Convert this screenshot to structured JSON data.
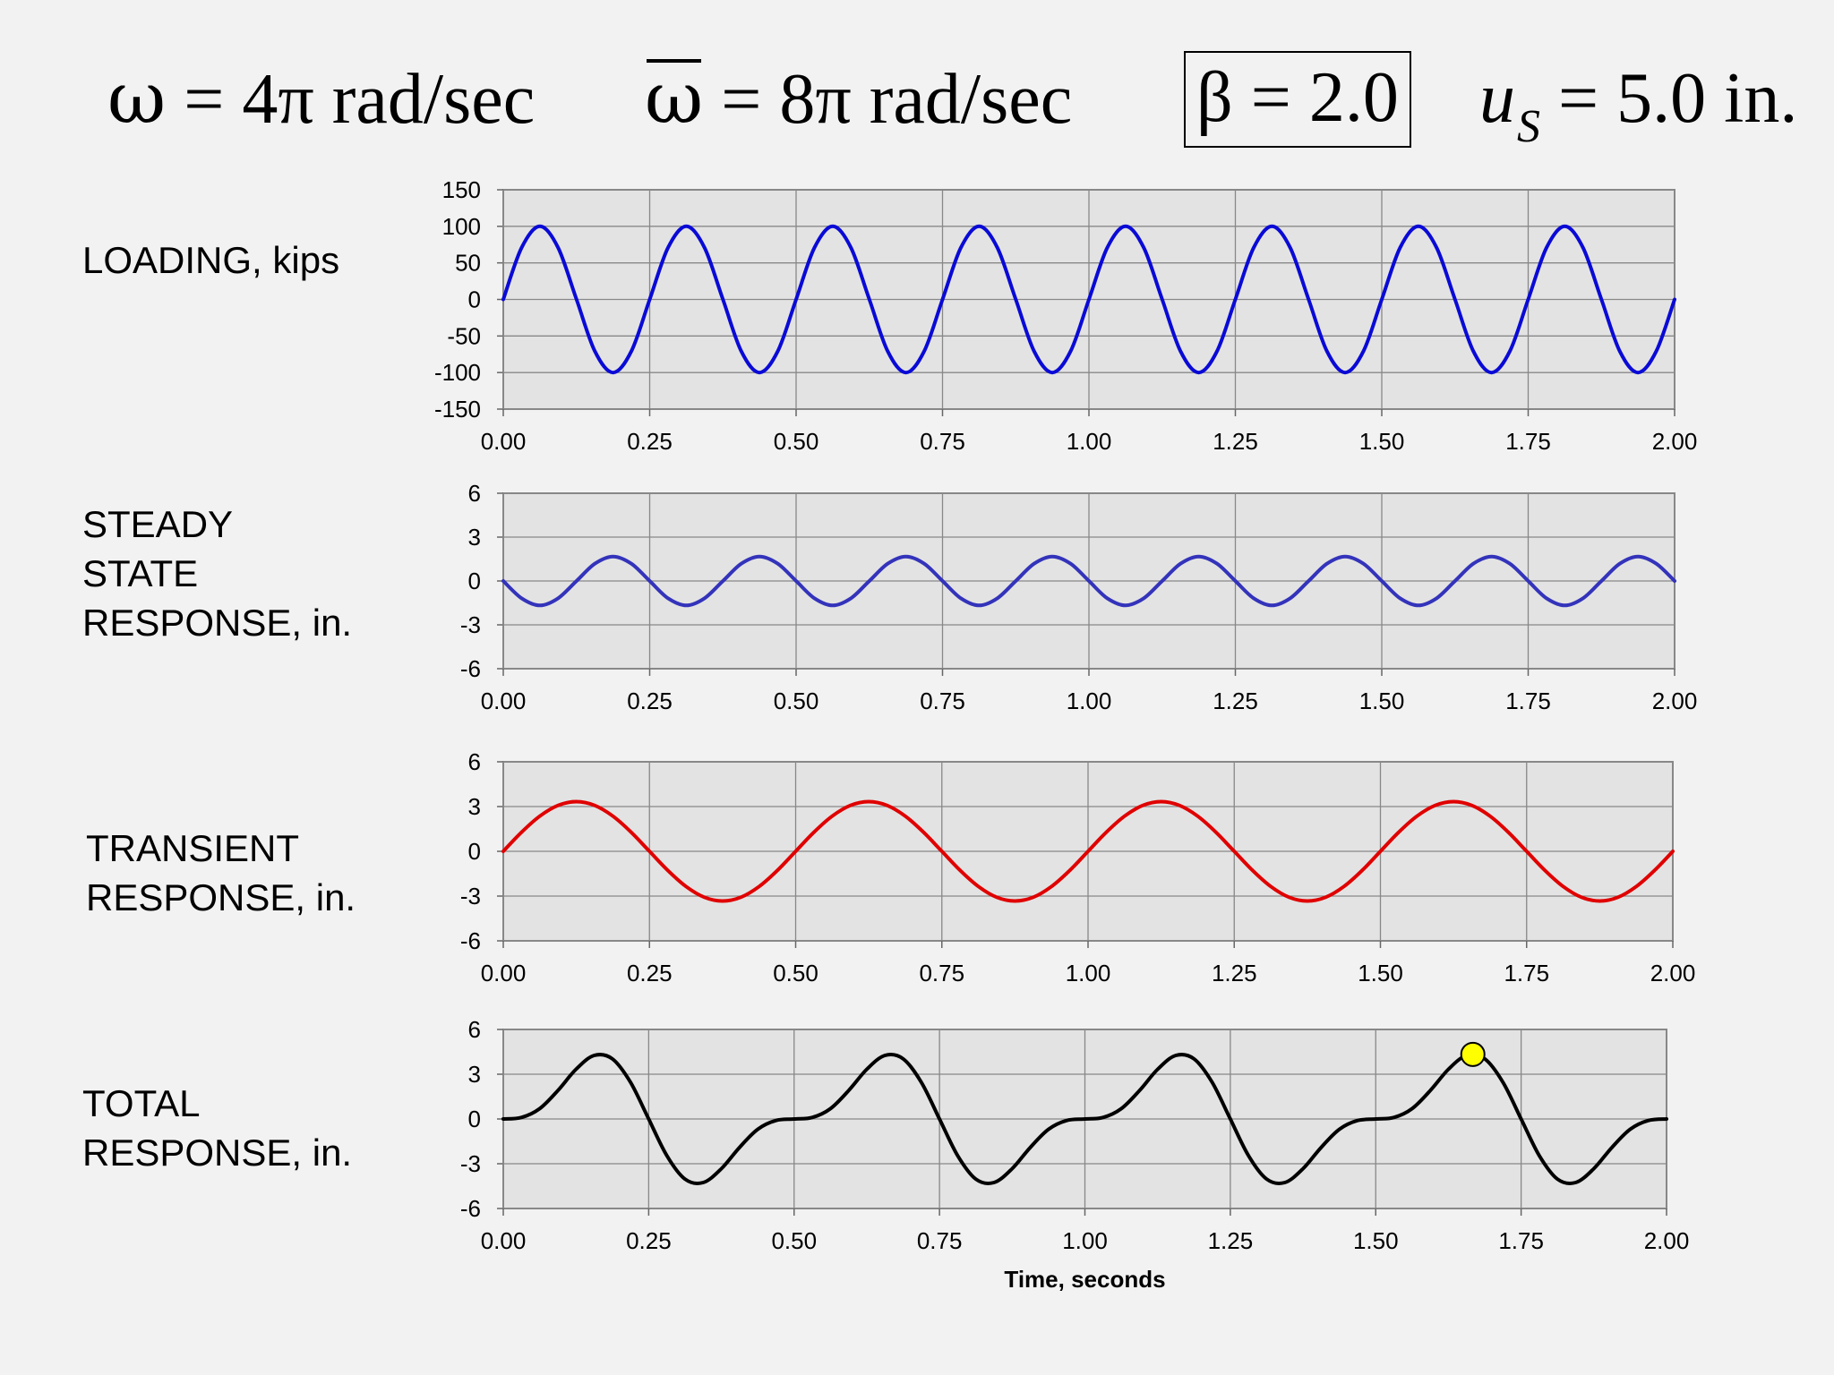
{
  "header": {
    "omega": {
      "symbol": "ω",
      "rest": "= 4π rad/sec"
    },
    "omega_bar": {
      "symbol": "ω",
      "rest": "= 8π rad/sec"
    },
    "beta": {
      "text": "β = 2.0"
    },
    "us": {
      "var": "u",
      "sub": "S",
      "rest": "= 5.0 in."
    }
  },
  "row_labels": [
    {
      "lines": [
        "LOADING, kips"
      ]
    },
    {
      "lines": [
        "STEADY",
        "STATE",
        "RESPONSE, in."
      ]
    },
    {
      "lines": [
        "TRANSIENT",
        "RESPONSE, in."
      ]
    },
    {
      "lines": [
        "TOTAL",
        "RESPONSE, in."
      ]
    }
  ],
  "chart_data": [
    {
      "type": "line",
      "title": "",
      "xlabel": "",
      "ylabel": "",
      "xlim": [
        0,
        2
      ],
      "ylim": [
        -150,
        150
      ],
      "xticks": [
        "0.00",
        "0.25",
        "0.50",
        "0.75",
        "1.00",
        "1.25",
        "1.50",
        "1.75",
        "2.00"
      ],
      "yticks": [
        "150",
        "100",
        "50",
        "0",
        "-50",
        "-100",
        "-150"
      ],
      "grid": true,
      "series": [
        {
          "color": "#0a0ad6",
          "x": [
            0,
            0.03125,
            0.0625,
            0.09375,
            0.125,
            0.15625,
            0.1875,
            0.21875,
            0.25,
            0.28125,
            0.3125,
            0.34375,
            0.375,
            0.40625,
            0.4375,
            0.46875,
            0.5,
            0.53125,
            0.5625,
            0.59375,
            0.625,
            0.65625,
            0.6875,
            0.71875,
            0.75,
            0.78125,
            0.8125,
            0.84375,
            0.875,
            0.90625,
            0.9375,
            0.96875,
            1,
            1.03125,
            1.0625,
            1.09375,
            1.125,
            1.15625,
            1.1875,
            1.21875,
            1.25,
            1.28125,
            1.3125,
            1.34375,
            1.375,
            1.40625,
            1.4375,
            1.46875,
            1.5,
            1.53125,
            1.5625,
            1.59375,
            1.625,
            1.65625,
            1.6875,
            1.71875,
            1.75,
            1.78125,
            1.8125,
            1.84375,
            1.875,
            1.90625,
            1.9375,
            1.96875,
            2
          ],
          "y": [
            0,
            70.7,
            100,
            70.7,
            0,
            -70.7,
            -100,
            -70.7,
            0,
            70.7,
            100,
            70.7,
            0,
            -70.7,
            -100,
            -70.7,
            0,
            70.7,
            100,
            70.7,
            0,
            -70.7,
            -100,
            -70.7,
            0,
            70.7,
            100,
            70.7,
            0,
            -70.7,
            -100,
            -70.7,
            0,
            70.7,
            100,
            70.7,
            0,
            -70.7,
            -100,
            -70.7,
            0,
            70.7,
            100,
            70.7,
            0,
            -70.7,
            -100,
            -70.7,
            0,
            70.7,
            100,
            70.7,
            0,
            -70.7,
            -100,
            -70.7,
            0,
            70.7,
            100,
            70.7,
            0,
            -70.7,
            -100,
            -70.7,
            0
          ]
        }
      ]
    },
    {
      "type": "line",
      "title": "",
      "xlabel": "",
      "ylabel": "",
      "xlim": [
        0,
        2
      ],
      "ylim": [
        -6,
        6
      ],
      "xticks": [
        "0.00",
        "0.25",
        "0.50",
        "0.75",
        "1.00",
        "1.25",
        "1.50",
        "1.75",
        "2.00"
      ],
      "yticks": [
        "6",
        "3",
        "0",
        "-3",
        "-6"
      ],
      "grid": true,
      "series": [
        {
          "color": "#3333bb",
          "x": [
            0,
            0.03125,
            0.0625,
            0.09375,
            0.125,
            0.15625,
            0.1875,
            0.21875,
            0.25,
            0.28125,
            0.3125,
            0.34375,
            0.375,
            0.40625,
            0.4375,
            0.46875,
            0.5,
            0.53125,
            0.5625,
            0.59375,
            0.625,
            0.65625,
            0.6875,
            0.71875,
            0.75,
            0.78125,
            0.8125,
            0.84375,
            0.875,
            0.90625,
            0.9375,
            0.96875,
            1,
            1.03125,
            1.0625,
            1.09375,
            1.125,
            1.15625,
            1.1875,
            1.21875,
            1.25,
            1.28125,
            1.3125,
            1.34375,
            1.375,
            1.40625,
            1.4375,
            1.46875,
            1.5,
            1.53125,
            1.5625,
            1.59375,
            1.625,
            1.65625,
            1.6875,
            1.71875,
            1.75,
            1.78125,
            1.8125,
            1.84375,
            1.875,
            1.90625,
            1.9375,
            1.96875,
            2
          ],
          "y": [
            0,
            -1.18,
            -1.67,
            -1.18,
            0,
            1.18,
            1.67,
            1.18,
            0,
            -1.18,
            -1.67,
            -1.18,
            0,
            1.18,
            1.67,
            1.18,
            0,
            -1.18,
            -1.67,
            -1.18,
            0,
            1.18,
            1.67,
            1.18,
            0,
            -1.18,
            -1.67,
            -1.18,
            0,
            1.18,
            1.67,
            1.18,
            0,
            -1.18,
            -1.67,
            -1.18,
            0,
            1.18,
            1.67,
            1.18,
            0,
            -1.18,
            -1.67,
            -1.18,
            0,
            1.18,
            1.67,
            1.18,
            0,
            -1.18,
            -1.67,
            -1.18,
            0,
            1.18,
            1.67,
            1.18,
            0,
            -1.18,
            -1.67,
            -1.18,
            0,
            1.18,
            1.67,
            1.18,
            0
          ]
        }
      ]
    },
    {
      "type": "line",
      "title": "",
      "xlabel": "",
      "ylabel": "",
      "xlim": [
        0,
        2
      ],
      "ylim": [
        -6,
        6
      ],
      "xticks": [
        "0.00",
        "0.25",
        "0.50",
        "0.75",
        "1.00",
        "1.25",
        "1.50",
        "1.75",
        "2.00"
      ],
      "yticks": [
        "6",
        "3",
        "0",
        "-3",
        "-6"
      ],
      "grid": true,
      "series": [
        {
          "color": "#e00000",
          "x": [
            0,
            0.03125,
            0.0625,
            0.09375,
            0.125,
            0.15625,
            0.1875,
            0.21875,
            0.25,
            0.28125,
            0.3125,
            0.34375,
            0.375,
            0.40625,
            0.4375,
            0.46875,
            0.5,
            0.53125,
            0.5625,
            0.59375,
            0.625,
            0.65625,
            0.6875,
            0.71875,
            0.75,
            0.78125,
            0.8125,
            0.84375,
            0.875,
            0.90625,
            0.9375,
            0.96875,
            1,
            1.03125,
            1.0625,
            1.09375,
            1.125,
            1.15625,
            1.1875,
            1.21875,
            1.25,
            1.28125,
            1.3125,
            1.34375,
            1.375,
            1.40625,
            1.4375,
            1.46875,
            1.5,
            1.53125,
            1.5625,
            1.59375,
            1.625,
            1.65625,
            1.6875,
            1.71875,
            1.75,
            1.78125,
            1.8125,
            1.84375,
            1.875,
            1.90625,
            1.9375,
            1.96875,
            2
          ],
          "y": [
            0,
            1.28,
            2.36,
            3.08,
            3.33,
            3.08,
            2.36,
            1.28,
            0,
            -1.28,
            -2.36,
            -3.08,
            -3.33,
            -3.08,
            -2.36,
            -1.28,
            0,
            1.28,
            2.36,
            3.08,
            3.33,
            3.08,
            2.36,
            1.28,
            0,
            -1.28,
            -2.36,
            -3.08,
            -3.33,
            -3.08,
            -2.36,
            -1.28,
            0,
            1.28,
            2.36,
            3.08,
            3.33,
            3.08,
            2.36,
            1.28,
            0,
            -1.28,
            -2.36,
            -3.08,
            -3.33,
            -3.08,
            -2.36,
            -1.28,
            0,
            1.28,
            2.36,
            3.08,
            3.33,
            3.08,
            2.36,
            1.28,
            0,
            -1.28,
            -2.36,
            -3.08,
            -3.33,
            -3.08,
            -2.36,
            -1.28,
            0
          ]
        }
      ]
    },
    {
      "type": "line",
      "title": "",
      "xlabel": "Time, seconds",
      "ylabel": "",
      "xlim": [
        0,
        2
      ],
      "ylim": [
        -6,
        6
      ],
      "xticks": [
        "0.00",
        "0.25",
        "0.50",
        "0.75",
        "1.00",
        "1.25",
        "1.50",
        "1.75",
        "2.00"
      ],
      "yticks": [
        "6",
        "3",
        "0",
        "-3",
        "-6"
      ],
      "grid": true,
      "series": [
        {
          "color": "#000000",
          "x": [
            0,
            0.03125,
            0.0625,
            0.09375,
            0.125,
            0.15625,
            0.1875,
            0.21875,
            0.25,
            0.28125,
            0.3125,
            0.34375,
            0.375,
            0.40625,
            0.4375,
            0.46875,
            0.5,
            0.53125,
            0.5625,
            0.59375,
            0.625,
            0.65625,
            0.6875,
            0.71875,
            0.75,
            0.78125,
            0.8125,
            0.84375,
            0.875,
            0.90625,
            0.9375,
            0.96875,
            1,
            1.03125,
            1.0625,
            1.09375,
            1.125,
            1.15625,
            1.1875,
            1.21875,
            1.25,
            1.28125,
            1.3125,
            1.34375,
            1.375,
            1.40625,
            1.4375,
            1.46875,
            1.5,
            1.53125,
            1.5625,
            1.59375,
            1.625,
            1.65625,
            1.6875,
            1.71875,
            1.75,
            1.78125,
            1.8125,
            1.84375,
            1.875,
            1.90625,
            1.9375,
            1.96875,
            2
          ],
          "y": [
            0,
            0.1,
            0.69,
            1.9,
            3.33,
            4.26,
            4.03,
            2.46,
            0,
            -2.46,
            -4.03,
            -4.26,
            -3.33,
            -1.9,
            -0.69,
            -0.1,
            0,
            0.1,
            0.69,
            1.9,
            3.33,
            4.26,
            4.03,
            2.46,
            0,
            -2.46,
            -4.03,
            -4.26,
            -3.33,
            -1.9,
            -0.69,
            -0.1,
            0,
            0.1,
            0.69,
            1.9,
            3.33,
            4.26,
            4.03,
            2.46,
            0,
            -2.46,
            -4.03,
            -4.26,
            -3.33,
            -1.9,
            -0.69,
            -0.1,
            0,
            0.1,
            0.69,
            1.9,
            3.33,
            4.26,
            4.03,
            2.46,
            0,
            -2.46,
            -4.03,
            -4.26,
            -3.33,
            -1.9,
            -0.69,
            -0.1,
            0
          ]
        }
      ],
      "marker": {
        "x": 1.667,
        "y": 4.33,
        "color": "#ffff00"
      }
    }
  ]
}
